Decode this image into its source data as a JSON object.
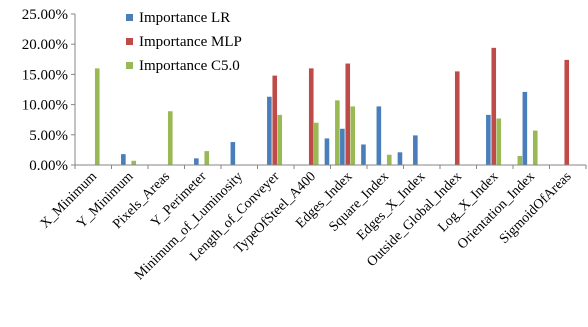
{
  "chart_data": {
    "type": "bar",
    "categories": [
      "X_Minimum",
      "Y_Minimum",
      "Pixels_Areas",
      "Y_Perimeter",
      "Minimum_of_Luminosity",
      "Length_of_Conveyer",
      "TypeOfSteel_A400",
      "Edges_Index",
      "Square_Index",
      "Edges_X_Index",
      "Outside_Global_Index",
      "Log_X_Index",
      "Orientation_Index",
      "SigmoidOfAreas"
    ],
    "series": [
      {
        "name": "Importance LR",
        "color": "#4a7ebb",
        "values": [
          0.0,
          1.8,
          0.0,
          1.1,
          3.8,
          11.3,
          0.0,
          6.0,
          9.7,
          4.9,
          0.0,
          8.3,
          12.1,
          0.0
        ],
        "extra": [
          null,
          null,
          null,
          null,
          null,
          null,
          null,
          4.4,
          3.4,
          2.1,
          null,
          null,
          null,
          null
        ]
      },
      {
        "name": "Importance MLP",
        "color": "#be4b48",
        "values": [
          0.0,
          0.0,
          0.0,
          0.0,
          0.0,
          14.8,
          16.0,
          16.8,
          0.0,
          0.0,
          15.5,
          19.4,
          0.0,
          17.4
        ]
      },
      {
        "name": "Importance C5.0",
        "color": "#98b954",
        "values": [
          16.0,
          0.7,
          8.9,
          2.3,
          0.0,
          8.3,
          7.0,
          9.7,
          1.7,
          0.0,
          0.0,
          7.7,
          5.7,
          0.0
        ],
        "extra": [
          null,
          null,
          null,
          null,
          null,
          null,
          null,
          10.7,
          null,
          null,
          null,
          null,
          1.5,
          null
        ]
      }
    ],
    "y_ticks": [
      "0.00%",
      "5.00%",
      "10.00%",
      "15.00%",
      "20.00%",
      "25.00%"
    ],
    "ylim": [
      0,
      25
    ],
    "grid": false,
    "legend_position": "top-center"
  }
}
